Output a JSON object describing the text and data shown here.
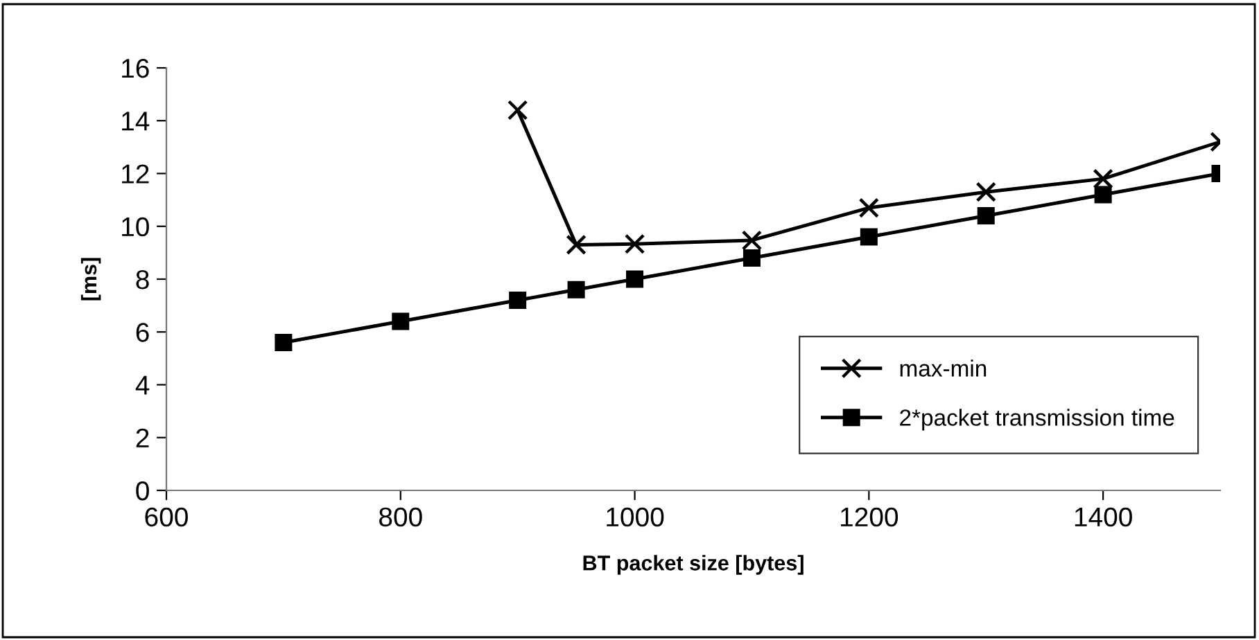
{
  "chart_data": {
    "type": "line",
    "xlabel": "BT packet size [bytes]",
    "ylabel": "[ms]",
    "xlim": [
      600,
      1500
    ],
    "xticks": [
      600,
      800,
      1000,
      1200,
      1400
    ],
    "ylim": [
      0,
      16
    ],
    "yticks": [
      0,
      2,
      4,
      6,
      8,
      10,
      12,
      14,
      16
    ],
    "grid": false,
    "legend": "bottom right",
    "series": [
      {
        "name": "max-min",
        "color": "#000000",
        "marker": "cross",
        "x": [
          900,
          950,
          1000,
          1100,
          1200,
          1300,
          1400,
          1500
        ],
        "values": [
          14.4,
          9.3,
          9.33,
          9.47,
          10.7,
          11.3,
          11.8,
          13.2
        ]
      },
      {
        "name": "2*packet transmission time",
        "color": "#000000",
        "marker": "square",
        "x": [
          700,
          800,
          900,
          950,
          1000,
          1100,
          1200,
          1300,
          1400,
          1500
        ],
        "values": [
          5.6,
          6.4,
          7.2,
          7.6,
          8.0,
          8.8,
          9.6,
          10.4,
          11.2,
          12.0
        ]
      }
    ]
  }
}
